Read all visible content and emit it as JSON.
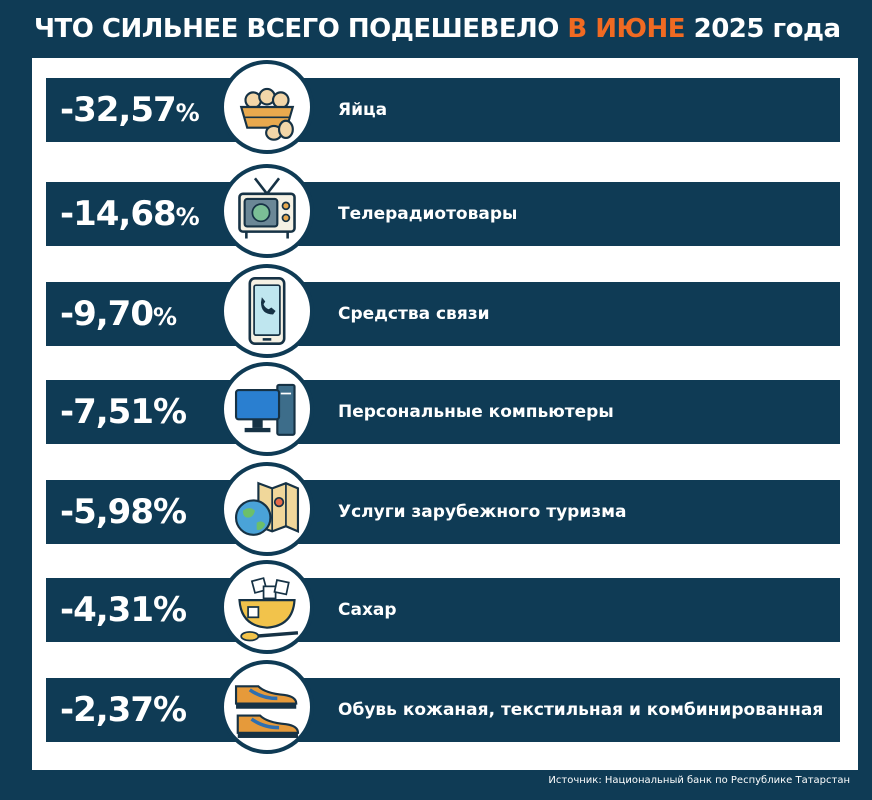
{
  "title": {
    "main": "ЧТО СИЛЬНЕЕ ВСЕГО ПОДЕШЕВЕЛО",
    "accent": "В ИЮНЕ",
    "year": "2025 года"
  },
  "chart_data": {
    "type": "bar",
    "unit": "%",
    "categories": [
      "Яйца",
      "Телерадиотовары",
      "Средства связи",
      "Персональные компьютеры",
      "Услуги зарубежного туризма",
      "Сахар",
      "Обувь кожаная, текстильная и комбинированная"
    ],
    "values": [
      -32.57,
      -14.68,
      -9.7,
      -7.51,
      -5.98,
      -4.31,
      -2.37
    ],
    "value_labels": [
      "-32,57",
      "-14,68",
      "-9,70",
      "-7,51",
      "-5,98",
      "-4,31",
      "-2,37"
    ],
    "icons": [
      "eggs-basket-icon",
      "tv-icon",
      "smartphone-icon",
      "computer-icon",
      "travel-map-globe-icon",
      "sugar-bowl-icon",
      "shoes-icon"
    ]
  },
  "source": "Источник: Национальный банк по Республике Татарстан",
  "colors": {
    "background": "#0f3b55",
    "accent": "#f06a22",
    "panel": "#ffffff"
  }
}
